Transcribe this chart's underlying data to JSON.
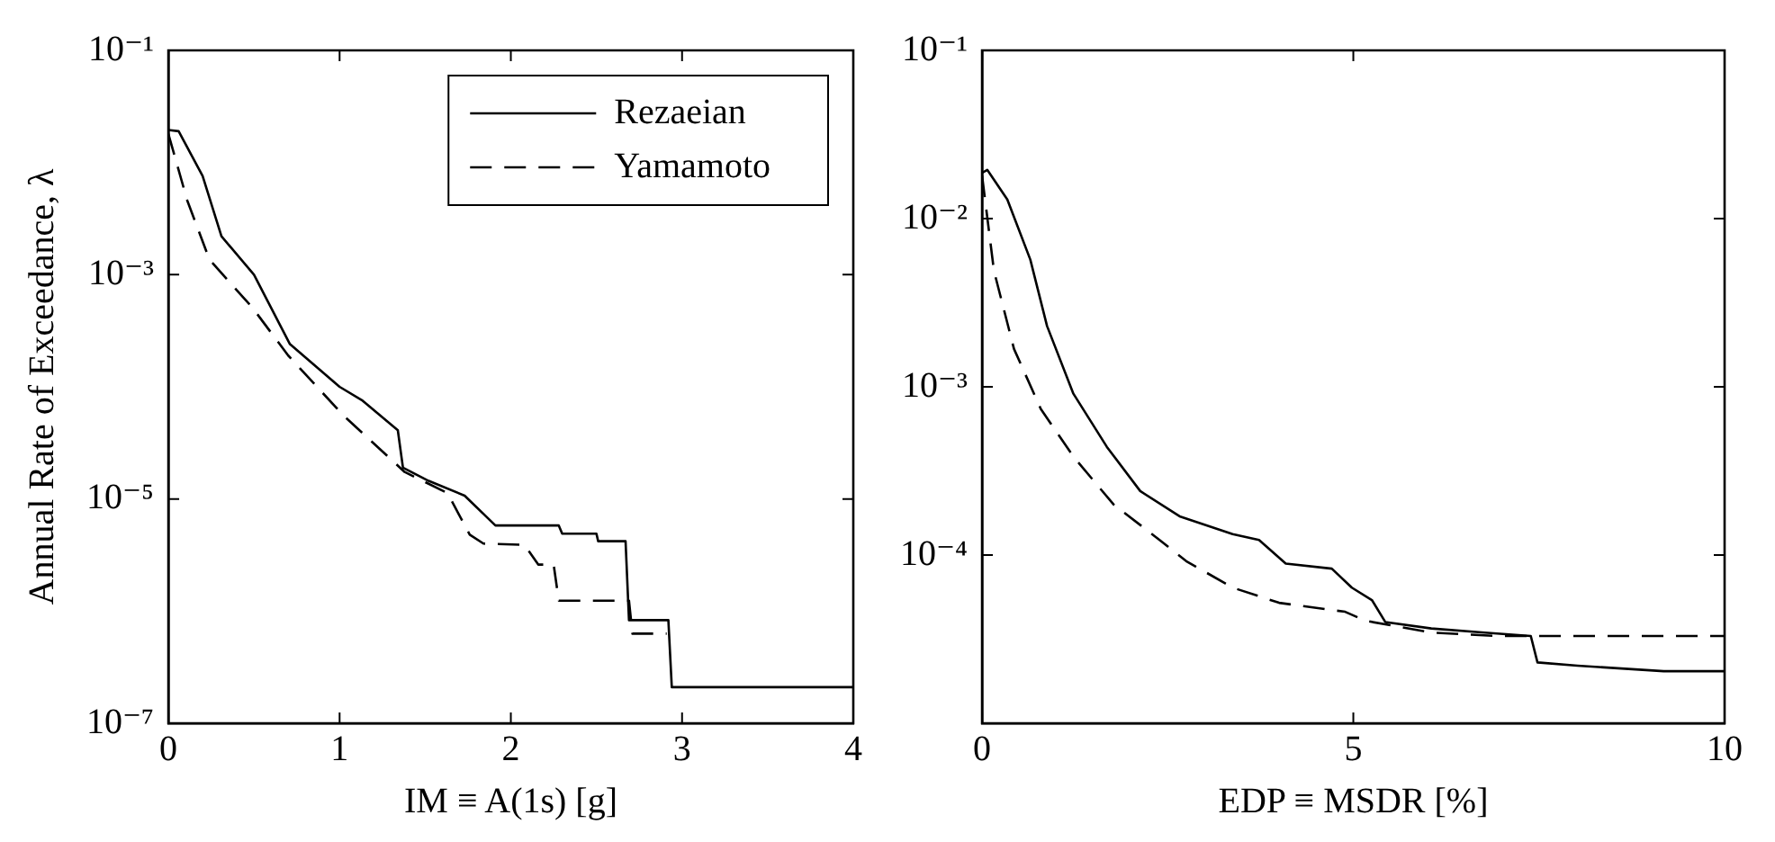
{
  "chart_data": [
    {
      "type": "line",
      "xlabel": "IM ≡ A(1s) [g]",
      "ylabel": "Annual Rate of Exceedance, λ",
      "log": "y",
      "xlim": [
        0,
        4
      ],
      "xticks": [
        0,
        1,
        2,
        3,
        4
      ],
      "ylim": [
        1e-07,
        0.1
      ],
      "yticks": [
        {
          "value": 1e-07,
          "label": "10⁻⁷"
        },
        {
          "value": 1e-05,
          "label": "10⁻⁵"
        },
        {
          "value": 0.001,
          "label": "10⁻³"
        },
        {
          "value": 0.1,
          "label": "10⁻¹"
        }
      ],
      "grid": false,
      "legend": "top right",
      "series": [
        {
          "name": "Rezaeian",
          "color": "#000000",
          "line_style": "solid",
          "x": [
            0,
            0.06,
            0.2,
            0.31,
            0.5,
            0.71,
            1.0,
            1.13,
            1.34,
            1.37,
            1.52,
            1.73,
            1.91,
            2.28,
            2.3,
            2.5,
            2.51,
            2.67,
            2.69,
            2.92,
            2.94,
            4
          ],
          "values": [
            0.0195,
            0.019,
            0.0076,
            0.0022,
            0.001,
            0.00024,
            0.0001,
            7.6e-05,
            4.1e-05,
            1.9e-05,
            1.45e-05,
            1.07e-05,
            5.8e-06,
            5.8e-06,
            4.9e-06,
            4.9e-06,
            4.2e-06,
            4.2e-06,
            8.3e-07,
            8.3e-07,
            2.1e-07,
            2.1e-07
          ]
        },
        {
          "name": "Yamamoto",
          "color": "#000000",
          "line_style": "dashed",
          "x": [
            0,
            0.11,
            0.24,
            0.49,
            0.7,
            1.02,
            1.38,
            1.63,
            1.76,
            1.84,
            2.08,
            2.16,
            2.25,
            2.28,
            2.69,
            2.71,
            2.91
          ],
          "values": [
            0.018,
            0.0046,
            0.00136,
            0.00051,
            0.00019,
            5.6e-05,
            1.74e-05,
            1.13e-05,
            4.8e-06,
            4e-06,
            3.9e-06,
            2.6e-06,
            2.6e-06,
            1.24e-06,
            1.24e-06,
            6.3e-07,
            6.3e-07
          ]
        }
      ]
    },
    {
      "type": "line",
      "xlabel": "EDP ≡ MSDR [%]",
      "log": "y",
      "xlim": [
        0,
        10
      ],
      "xticks": [
        0,
        5,
        10
      ],
      "ylim": [
        1e-05,
        0.1
      ],
      "yticks": [
        {
          "value": 0.0001,
          "label": "10⁻⁴"
        },
        {
          "value": 0.001,
          "label": "10⁻³"
        },
        {
          "value": 0.01,
          "label": "10⁻²"
        },
        {
          "value": 0.1,
          "label": "10⁻¹"
        }
      ],
      "grid": false,
      "series": [
        {
          "color": "#000000",
          "line_style": "solid",
          "x": [
            0,
            0.07,
            0.34,
            0.65,
            0.875,
            1.23,
            1.68,
            2.13,
            2.66,
            3.375,
            3.73,
            4.09,
            4.71,
            4.98,
            5.25,
            5.43,
            6.05,
            6.77,
            7.39,
            7.48,
            8.02,
            9.18,
            10
          ],
          "values": [
            0.0187,
            0.0195,
            0.013,
            0.0057,
            0.0023,
            0.00091,
            0.00044,
            0.00024,
            0.00017,
            0.000133,
            0.000123,
            8.9e-05,
            8.3e-05,
            6.4e-05,
            5.4e-05,
            4e-05,
            3.66e-05,
            3.46e-05,
            3.3e-05,
            2.3e-05,
            2.2e-05,
            2.04e-05,
            2.04e-05
          ]
        },
        {
          "color": "#000000",
          "line_style": "dashed",
          "x": [
            0,
            0.16,
            0.43,
            0.79,
            1.23,
            1.77,
            2.39,
            2.75,
            3.375,
            4.0,
            4.89,
            5.16,
            6.05,
            6.95,
            10
          ],
          "values": [
            0.018,
            0.0049,
            0.00168,
            0.00074,
            0.000385,
            0.0002,
            0.000123,
            9.2e-05,
            6.4e-05,
            5.2e-05,
            4.6e-05,
            4.07e-05,
            3.46e-05,
            3.3e-05,
            3.3e-05
          ]
        }
      ]
    }
  ]
}
